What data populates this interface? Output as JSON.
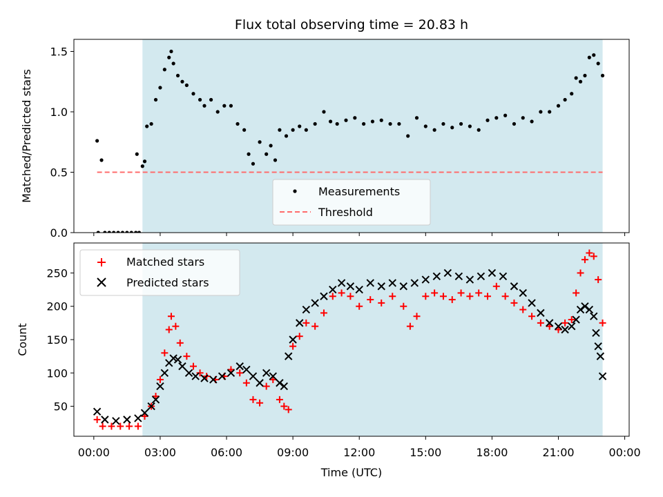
{
  "title": "Flux total observing time = 20.83 h",
  "xlabel": "Time (UTC)",
  "x_ticks": [
    "00:00",
    "03:00",
    "06:00",
    "09:00",
    "12:00",
    "15:00",
    "18:00",
    "21:00",
    "00:00"
  ],
  "colors": {
    "observing_band": "#d3e9ef",
    "measurements": "#000000",
    "threshold": "#ff6b6b",
    "matched": "#ff0000",
    "predicted": "#000000"
  },
  "chart_data": [
    {
      "type": "scatter",
      "ylabel": "Matched/Predicted stars",
      "x_unit": "hours UTC",
      "xlim": [
        -0.9,
        24.2
      ],
      "ylim": [
        0,
        1.6
      ],
      "y_ticks": [
        "0.0",
        "0.5",
        "1.0",
        "1.5"
      ],
      "observing_band_hours": [
        2.2,
        23.0
      ],
      "threshold": {
        "value": 0.5,
        "x_range_hours": [
          0.15,
          23.0
        ]
      },
      "legend": {
        "position": "lower-center",
        "entries": [
          "Measurements",
          "Threshold"
        ]
      },
      "series": [
        {
          "name": "Measurements",
          "marker": "dot",
          "x": [
            0.15,
            0.2,
            0.35,
            0.5,
            0.7,
            0.9,
            1.1,
            1.3,
            1.5,
            1.7,
            1.9,
            2.05,
            1.95,
            2.2,
            2.3,
            2.4,
            2.6,
            2.8,
            3.0,
            3.2,
            3.4,
            3.5,
            3.6,
            3.8,
            4.0,
            4.2,
            4.5,
            4.8,
            5.0,
            5.3,
            5.6,
            5.9,
            6.2,
            6.5,
            6.8,
            7.0,
            7.2,
            7.5,
            7.8,
            8.0,
            8.2,
            8.4,
            8.7,
            9.0,
            9.3,
            9.6,
            10.0,
            10.4,
            10.7,
            11.0,
            11.4,
            11.8,
            12.2,
            12.6,
            13.0,
            13.4,
            13.8,
            14.2,
            14.6,
            15.0,
            15.4,
            15.8,
            16.2,
            16.6,
            17.0,
            17.4,
            17.8,
            18.2,
            18.6,
            19.0,
            19.4,
            19.8,
            20.2,
            20.6,
            21.0,
            21.3,
            21.6,
            21.8,
            22.0,
            22.2,
            22.4,
            22.6,
            22.8,
            23.0
          ],
          "y": [
            0.76,
            0.0,
            0.6,
            0.0,
            0.0,
            0.0,
            0.0,
            0.0,
            0.0,
            0.0,
            0.0,
            0.0,
            0.65,
            0.55,
            0.59,
            0.88,
            0.9,
            1.1,
            1.2,
            1.35,
            1.45,
            1.5,
            1.4,
            1.3,
            1.25,
            1.22,
            1.15,
            1.1,
            1.05,
            1.1,
            1.0,
            1.05,
            1.05,
            0.9,
            0.85,
            0.65,
            0.57,
            0.75,
            0.65,
            0.72,
            0.6,
            0.85,
            0.8,
            0.85,
            0.88,
            0.85,
            0.9,
            1.0,
            0.92,
            0.9,
            0.93,
            0.95,
            0.9,
            0.92,
            0.93,
            0.9,
            0.9,
            0.8,
            0.95,
            0.88,
            0.85,
            0.9,
            0.87,
            0.9,
            0.88,
            0.85,
            0.93,
            0.95,
            0.97,
            0.9,
            0.95,
            0.92,
            1.0,
            1.0,
            1.05,
            1.1,
            1.15,
            1.28,
            1.25,
            1.3,
            1.45,
            1.47,
            1.4,
            1.3
          ]
        },
        {
          "name": "Threshold",
          "style": "dashed",
          "x": [
            0.15,
            23.0
          ],
          "y": [
            0.5,
            0.5
          ]
        }
      ]
    },
    {
      "type": "scatter",
      "ylabel": "Count",
      "x_unit": "hours UTC",
      "xlim": [
        -0.9,
        24.2
      ],
      "ylim": [
        5,
        295
      ],
      "y_ticks": [
        "50",
        "100",
        "150",
        "200",
        "250"
      ],
      "observing_band_hours": [
        2.2,
        23.0
      ],
      "legend": {
        "position": "top-left",
        "entries": [
          "Matched stars",
          "Predicted stars"
        ]
      },
      "series": [
        {
          "name": "Matched stars",
          "marker": "plus",
          "x": [
            0.15,
            0.4,
            0.8,
            1.2,
            1.6,
            2.0,
            2.3,
            2.6,
            2.8,
            3.0,
            3.2,
            3.4,
            3.5,
            3.7,
            3.9,
            4.2,
            4.5,
            4.8,
            5.1,
            5.5,
            5.9,
            6.2,
            6.6,
            6.9,
            7.2,
            7.5,
            7.8,
            8.1,
            8.4,
            8.6,
            8.8,
            9.0,
            9.3,
            9.6,
            10.0,
            10.4,
            10.8,
            11.2,
            11.6,
            12.0,
            12.5,
            13.0,
            13.5,
            14.0,
            14.3,
            14.6,
            15.0,
            15.4,
            15.8,
            16.2,
            16.6,
            17.0,
            17.4,
            17.8,
            18.2,
            18.6,
            19.0,
            19.4,
            19.8,
            20.2,
            20.6,
            21.0,
            21.3,
            21.6,
            21.8,
            22.0,
            22.2,
            22.4,
            22.6,
            22.8,
            23.0
          ],
          "y": [
            30,
            20,
            20,
            20,
            20,
            20,
            35,
            50,
            65,
            90,
            130,
            165,
            185,
            170,
            145,
            125,
            110,
            100,
            95,
            90,
            95,
            105,
            100,
            85,
            60,
            55,
            80,
            90,
            60,
            50,
            45,
            140,
            155,
            175,
            170,
            190,
            215,
            220,
            215,
            200,
            210,
            205,
            215,
            200,
            170,
            185,
            215,
            220,
            215,
            210,
            220,
            215,
            220,
            215,
            230,
            215,
            205,
            195,
            185,
            175,
            170,
            165,
            175,
            180,
            220,
            250,
            270,
            280,
            275,
            240,
            175
          ]
        },
        {
          "name": "Predicted stars",
          "marker": "x",
          "x": [
            0.15,
            0.5,
            1.0,
            1.5,
            2.0,
            2.3,
            2.6,
            2.8,
            3.0,
            3.2,
            3.4,
            3.6,
            3.8,
            4.0,
            4.3,
            4.6,
            5.0,
            5.4,
            5.8,
            6.2,
            6.6,
            6.9,
            7.2,
            7.5,
            7.8,
            8.1,
            8.4,
            8.6,
            8.8,
            9.0,
            9.3,
            9.6,
            10.0,
            10.4,
            10.8,
            11.2,
            11.6,
            12.0,
            12.5,
            13.0,
            13.5,
            14.0,
            14.5,
            15.0,
            15.5,
            16.0,
            16.5,
            17.0,
            17.5,
            18.0,
            18.5,
            19.0,
            19.4,
            19.8,
            20.2,
            20.6,
            21.0,
            21.3,
            21.6,
            21.8,
            22.0,
            22.2,
            22.4,
            22.6,
            22.7,
            22.8,
            22.9,
            23.0
          ],
          "y": [
            42,
            30,
            28,
            30,
            32,
            40,
            50,
            60,
            80,
            100,
            115,
            122,
            120,
            110,
            100,
            95,
            92,
            90,
            95,
            100,
            110,
            105,
            95,
            85,
            100,
            95,
            85,
            80,
            125,
            150,
            175,
            195,
            205,
            215,
            225,
            235,
            230,
            225,
            235,
            230,
            235,
            230,
            235,
            240,
            245,
            250,
            245,
            240,
            245,
            250,
            245,
            230,
            220,
            205,
            190,
            175,
            170,
            165,
            170,
            180,
            195,
            200,
            195,
            185,
            160,
            140,
            125,
            95
          ]
        }
      ]
    }
  ]
}
